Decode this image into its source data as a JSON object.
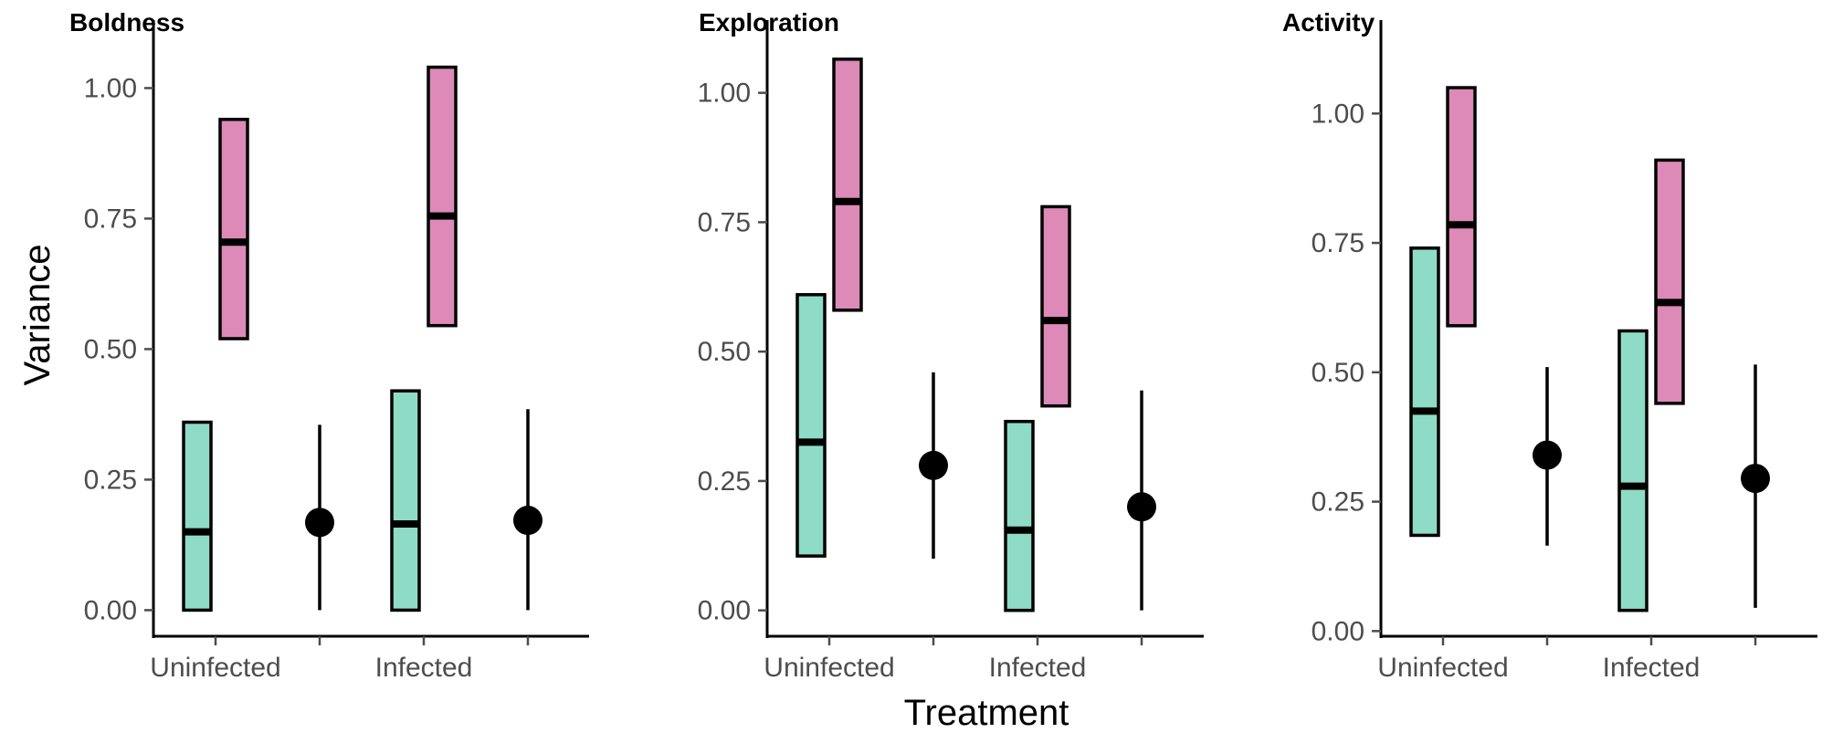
{
  "chart_data": [
    {
      "type": "crossbar-pointrange",
      "title": "Boldness",
      "ylabel": "Variance",
      "xlabel": "",
      "ylim": [
        -0.05,
        1.09
      ],
      "y_ticks": [
        "0.00",
        "0.25",
        "0.50",
        "0.75",
        "1.00"
      ],
      "categories": [
        "Uninfected",
        "Infected"
      ],
      "x_tick_labels": [
        "Uninfected",
        "",
        "Infected",
        ""
      ],
      "bars": [
        {
          "category": "Uninfected",
          "group": "teal",
          "low": 0.0,
          "mid": 0.15,
          "high": 0.36
        },
        {
          "category": "Uninfected",
          "group": "pink",
          "low": 0.52,
          "mid": 0.705,
          "high": 0.94
        },
        {
          "category": "Infected",
          "group": "teal",
          "low": 0.0,
          "mid": 0.165,
          "high": 0.42
        },
        {
          "category": "Infected",
          "group": "pink",
          "low": 0.545,
          "mid": 0.755,
          "high": 1.04
        }
      ],
      "points": [
        {
          "category": "Uninfected",
          "y": 0.168,
          "low": 0.0,
          "high": 0.355
        },
        {
          "category": "Infected",
          "y": 0.172,
          "low": 0.0,
          "high": 0.385
        }
      ]
    },
    {
      "type": "crossbar-pointrange",
      "title": "Exploration",
      "ylabel": "",
      "xlabel": "Treatment",
      "ylim": [
        -0.05,
        1.1
      ],
      "y_ticks": [
        "0.00",
        "0.25",
        "0.50",
        "0.75",
        "1.00"
      ],
      "categories": [
        "Uninfected",
        "Infected"
      ],
      "x_tick_labels": [
        "Uninfected",
        "",
        "Infected",
        ""
      ],
      "bars": [
        {
          "category": "Uninfected",
          "group": "teal",
          "low": 0.105,
          "mid": 0.325,
          "high": 0.61
        },
        {
          "category": "Uninfected",
          "group": "pink",
          "low": 0.58,
          "mid": 0.79,
          "high": 1.065
        },
        {
          "category": "Infected",
          "group": "teal",
          "low": 0.0,
          "mid": 0.155,
          "high": 0.365
        },
        {
          "category": "Infected",
          "group": "pink",
          "low": 0.395,
          "mid": 0.56,
          "high": 0.78
        }
      ],
      "points": [
        {
          "category": "Uninfected",
          "y": 0.28,
          "low": 0.1,
          "high": 0.46
        },
        {
          "category": "Infected",
          "y": 0.2,
          "low": 0.0,
          "high": 0.425
        }
      ]
    },
    {
      "type": "crossbar-pointrange",
      "title": "Activity",
      "ylabel": "",
      "xlabel": "",
      "ylim": [
        -0.01,
        1.14
      ],
      "y_ticks": [
        "0.00",
        "0.25",
        "0.50",
        "0.75",
        "1.00"
      ],
      "categories": [
        "Uninfected",
        "Infected"
      ],
      "x_tick_labels": [
        "Uninfected",
        "",
        "Infected",
        ""
      ],
      "bars": [
        {
          "category": "Uninfected",
          "group": "teal",
          "low": 0.185,
          "mid": 0.425,
          "high": 0.74
        },
        {
          "category": "Uninfected",
          "group": "pink",
          "low": 0.59,
          "mid": 0.785,
          "high": 1.05
        },
        {
          "category": "Infected",
          "group": "teal",
          "low": 0.04,
          "mid": 0.28,
          "high": 0.58
        },
        {
          "category": "Infected",
          "group": "pink",
          "low": 0.44,
          "mid": 0.635,
          "high": 0.91
        }
      ],
      "points": [
        {
          "category": "Uninfected",
          "y": 0.34,
          "low": 0.165,
          "high": 0.51
        },
        {
          "category": "Infected",
          "y": 0.295,
          "low": 0.045,
          "high": 0.515
        }
      ]
    }
  ],
  "colors": {
    "teal": "#8fdcc6",
    "pink": "#dd8ab8",
    "line": "#000000",
    "tick_text": "#4d4d4d"
  }
}
